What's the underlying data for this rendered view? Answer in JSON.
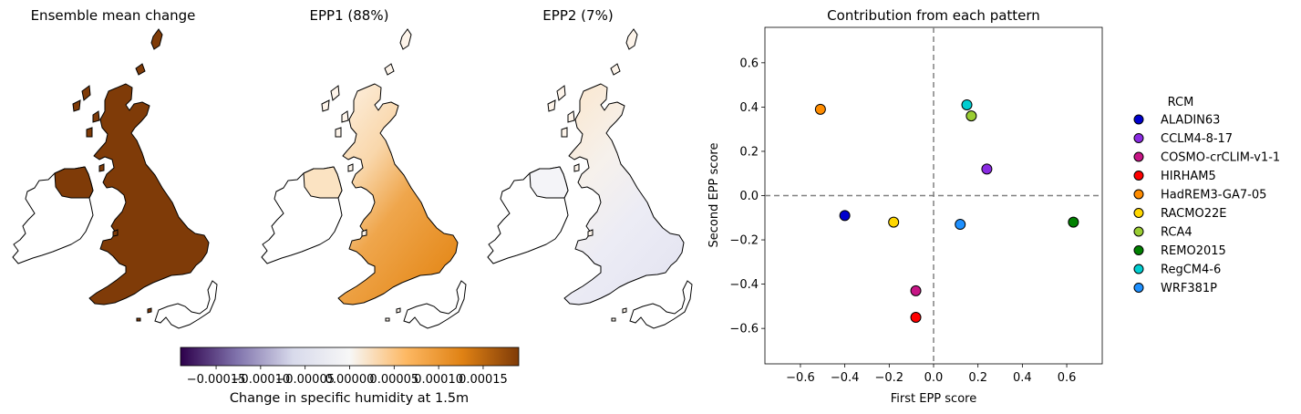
{
  "maps": {
    "titles": [
      "Ensemble mean change",
      "EPP1 (88%)",
      "EPP2 (7%)"
    ],
    "colorbar": {
      "label": "Change in specific humidity at 1.5m",
      "tick_labels": [
        "−0.00015",
        "−0.00010",
        "−0.00005",
        "0.00000",
        "0.00005",
        "0.00010",
        "0.00015"
      ],
      "range": [
        -0.00019,
        0.00019
      ],
      "colormap": [
        "#2d004b",
        "#8073ac",
        "#d8daeb",
        "#f7f7f7",
        "#fdb863",
        "#e08214",
        "#7f3b08"
      ]
    },
    "fill_colors": [
      "#7f3b08",
      "#e08214",
      "#eeeef8"
    ]
  },
  "chart_data": {
    "type": "scatter",
    "title": "Contribution from each pattern",
    "xlabel": "First EPP score",
    "ylabel": "Second EPP score",
    "xlim": [
      -0.76,
      0.76
    ],
    "ylim": [
      -0.76,
      0.76
    ],
    "xticks": [
      -0.6,
      -0.4,
      -0.2,
      0.0,
      0.2,
      0.4,
      0.6
    ],
    "yticks": [
      -0.6,
      -0.4,
      -0.2,
      0.0,
      0.2,
      0.4,
      0.6
    ],
    "tick_labels": [
      "−0.6",
      "−0.4",
      "−0.2",
      "0.0",
      "0.2",
      "0.4",
      "0.6"
    ],
    "reference_lines": {
      "x": 0,
      "y": 0,
      "style": "dashed",
      "color": "#808080"
    },
    "legend": {
      "title": "RCM",
      "placement": "right outside"
    },
    "points": [
      {
        "name": "ALADIN63",
        "x": -0.4,
        "y": -0.09,
        "color": "#0000cd"
      },
      {
        "name": "CCLM4-8-17",
        "x": 0.24,
        "y": 0.12,
        "color": "#8a2be2"
      },
      {
        "name": "COSMO-crCLIM-v1-1",
        "x": -0.08,
        "y": -0.43,
        "color": "#c71585"
      },
      {
        "name": "HIRHAM5",
        "x": -0.08,
        "y": -0.55,
        "color": "#ff0000"
      },
      {
        "name": "HadREM3-GA7-05",
        "x": -0.51,
        "y": 0.39,
        "color": "#ff8c00"
      },
      {
        "name": "RACMO22E",
        "x": -0.18,
        "y": -0.12,
        "color": "#ffd700"
      },
      {
        "name": "RCA4",
        "x": 0.17,
        "y": 0.36,
        "color": "#9acd32"
      },
      {
        "name": "REMO2015",
        "x": 0.63,
        "y": -0.12,
        "color": "#008000"
      },
      {
        "name": "RegCM4-6",
        "x": 0.15,
        "y": 0.41,
        "color": "#00ced1"
      },
      {
        "name": "WRF381P",
        "x": 0.12,
        "y": -0.13,
        "color": "#1e90ff"
      }
    ]
  }
}
